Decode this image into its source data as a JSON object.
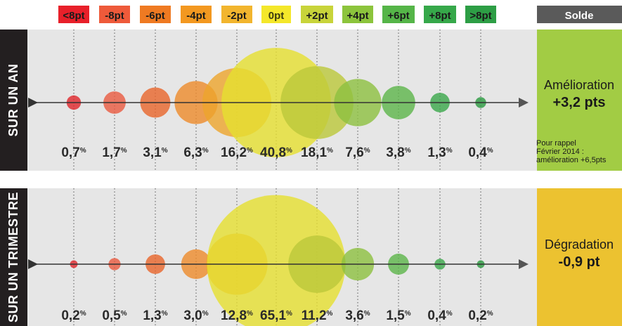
{
  "chart_data": {
    "type": "bubble",
    "categories": [
      "<8pt",
      "-8pt",
      "-6pt",
      "-4pt",
      "-2pt",
      "0pt",
      "+2pt",
      "+4pt",
      "+6pt",
      "+8pt",
      ">8pt"
    ],
    "category_colors": [
      "#e8202a",
      "#ee5a3a",
      "#ef7a22",
      "#f39820",
      "#f2b52e",
      "#f4e72a",
      "#c8d43a",
      "#8cc43c",
      "#55b548",
      "#36a84a",
      "#2d9e45"
    ],
    "bubble_colors": [
      "#e0262a",
      "#ea5a40",
      "#e8652a",
      "#ee8b2a",
      "#eea52c",
      "#e6e030",
      "#bcc83a",
      "#8dc040",
      "#5cb54a",
      "#3aa84a",
      "#2a9a40"
    ],
    "value_suffix": "%",
    "solde_header": "Solde",
    "series": [
      {
        "name": "SUR UN AN",
        "values": [
          0.7,
          1.7,
          3.1,
          6.3,
          16.2,
          40.8,
          18.1,
          7.6,
          3.8,
          1.3,
          0.4
        ],
        "labels": [
          "0,7",
          "1,7",
          "3,1",
          "6,3",
          "16,2",
          "40,8",
          "18,1",
          "7,6",
          "3,8",
          "1,3",
          "0,4"
        ],
        "solde": {
          "title": "Amélioration",
          "value": "+3,2 pts",
          "color": "#a2cc44",
          "note": [
            "Pour rappel",
            "Février 2014 :",
            "amélioration +6,5pts"
          ]
        }
      },
      {
        "name": "SUR UN TRIMESTRE",
        "values": [
          0.2,
          0.5,
          1.3,
          3.0,
          12.8,
          65.1,
          11.2,
          3.6,
          1.5,
          0.4,
          0.2
        ],
        "labels": [
          "0,2",
          "0,5",
          "1,3",
          "3,0",
          "12,8",
          "65,1",
          "11,2",
          "3,6",
          "1,5",
          "0,4",
          "0,2"
        ],
        "solde": {
          "title": "Dégradation",
          "value": "-0,9 pt",
          "color": "#ecc230",
          "note": []
        }
      }
    ]
  }
}
